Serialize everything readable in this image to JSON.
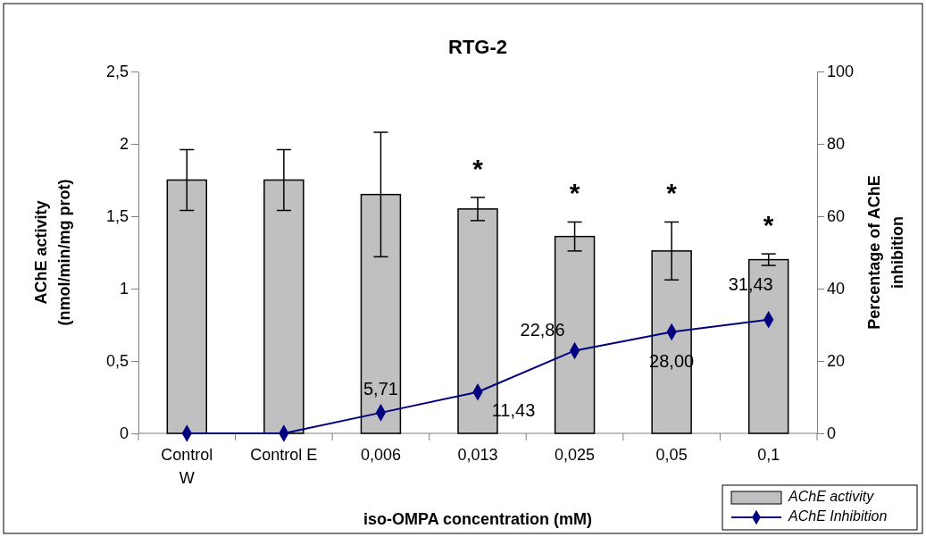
{
  "chart_data": {
    "type": "bar",
    "title": "RTG-2",
    "xlabel": "iso-OMPA concentration (mM)",
    "ylabel": "AChE activity (nmol/min/mg prot)",
    "y2label": "Percentage of AChE inhibition",
    "categories": [
      "Control W",
      "Control E",
      "0,006",
      "0,013",
      "0,025",
      "0,05",
      "0,1"
    ],
    "series": [
      {
        "name": "AChE activity",
        "color": "#c0c0c0",
        "values": [
          1.75,
          1.75,
          1.65,
          1.55,
          1.36,
          1.26,
          1.2
        ],
        "errors": [
          0.21,
          0.21,
          0.43,
          0.08,
          0.1,
          0.2,
          0.04
        ]
      },
      {
        "name": "AChE Inhibition",
        "type": "line",
        "axis": "y2",
        "color": "#000080",
        "marker": "diamond",
        "values": [
          0,
          0,
          5.71,
          11.43,
          22.86,
          28,
          31.43
        ],
        "value_labels": [
          null,
          null,
          "5,71",
          "11,43",
          "22,86",
          "28,00",
          "31,43"
        ]
      }
    ],
    "ylim": [
      0,
      2.5
    ],
    "yticks": [
      0,
      {
        "value": 0.5,
        "label": "0,5"
      },
      1,
      {
        "value": 1.5,
        "label": "1,5"
      },
      2,
      {
        "value": 2.5,
        "label": "2,5"
      }
    ],
    "y2lim": [
      0,
      100
    ],
    "y2ticks": [
      0,
      20,
      40,
      60,
      80,
      100
    ],
    "annotations": [
      {
        "text": "*",
        "x": "0,013",
        "y": 1.55
      },
      {
        "text": "*",
        "x": "0,025",
        "y": 1.36
      },
      {
        "text": "*",
        "x": "0,05",
        "y": 1.26
      },
      {
        "text": "*",
        "x": "0,1",
        "y": 1.2
      }
    ],
    "legend": "bottom right"
  }
}
